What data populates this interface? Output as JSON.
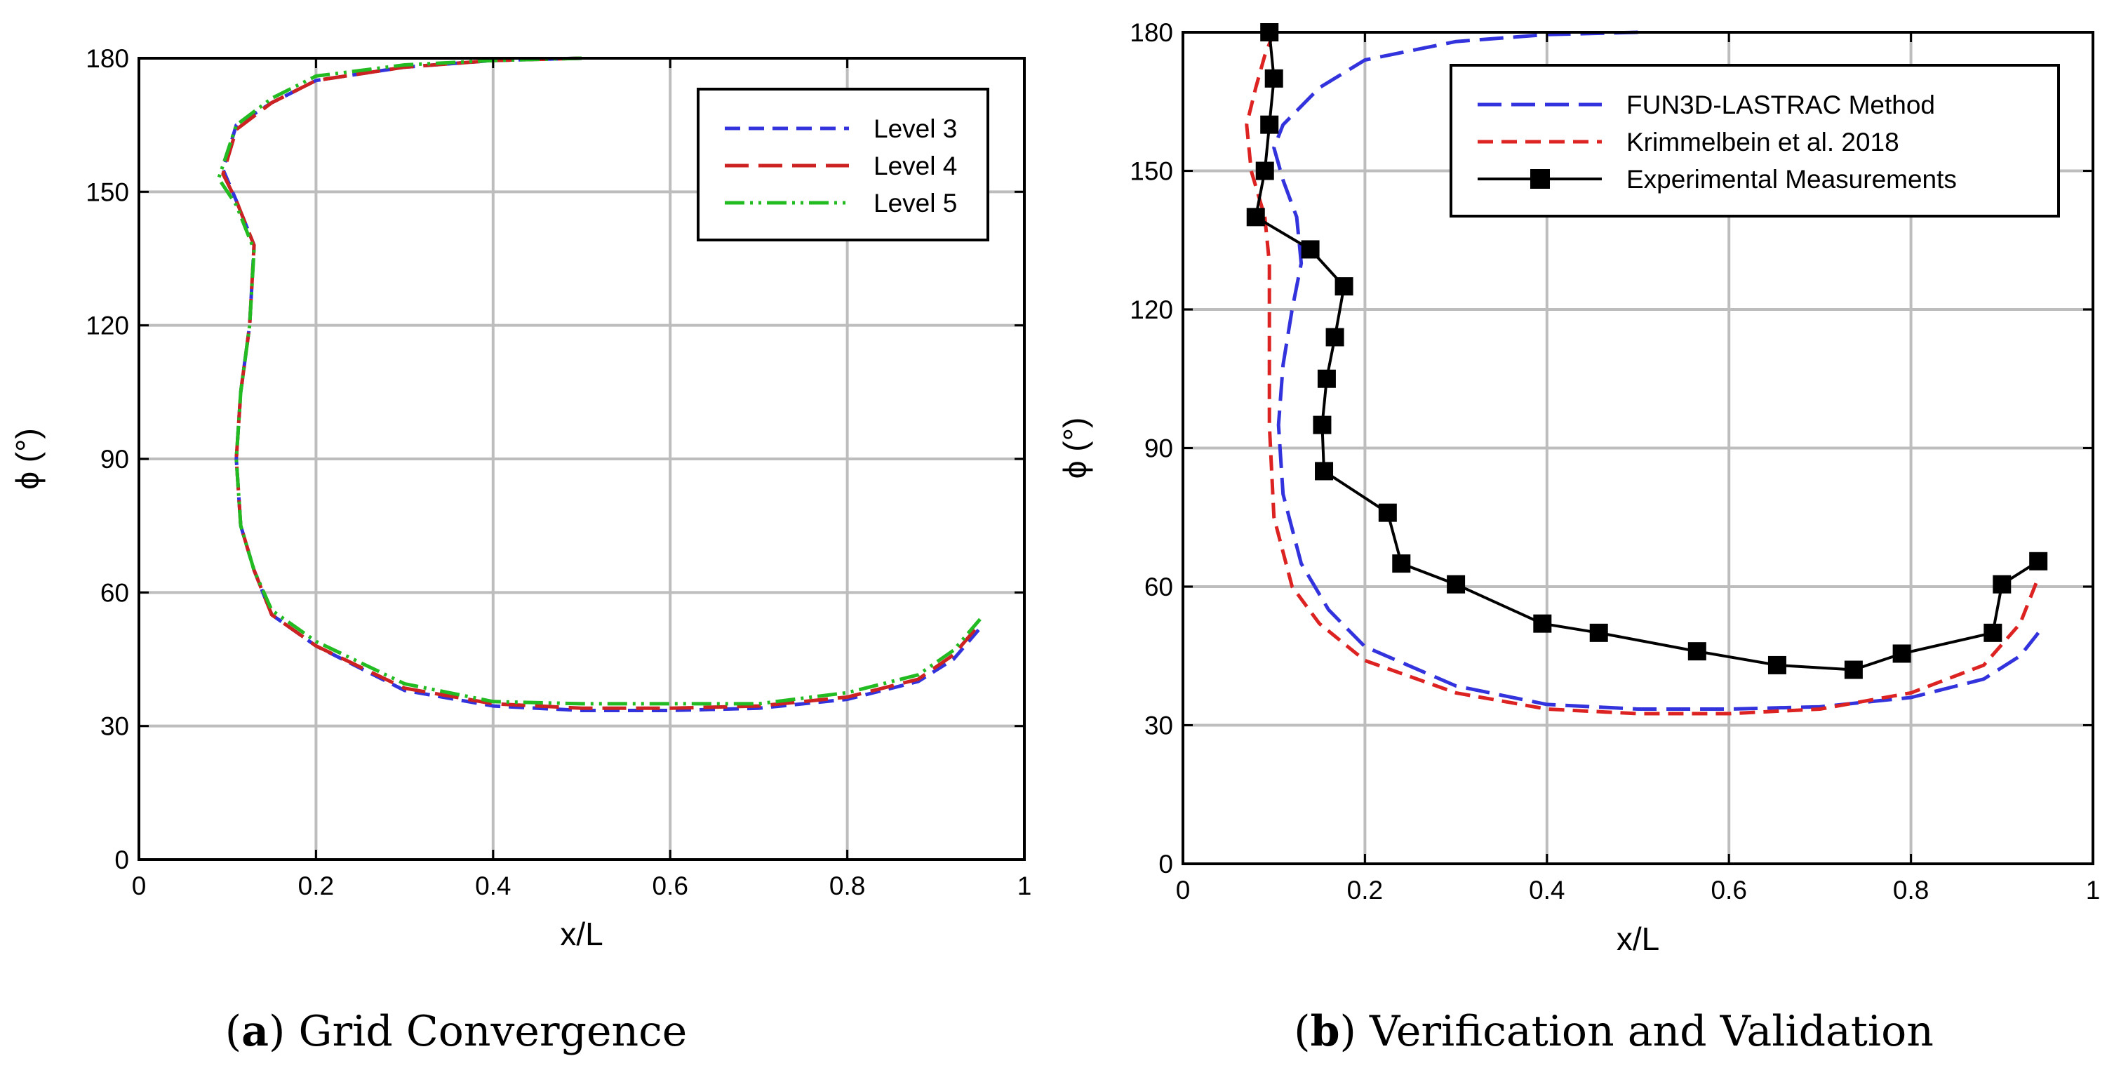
{
  "chart_data": [
    {
      "id": "a",
      "type": "line",
      "caption_tag": "a",
      "caption_text": "Grid Convergence",
      "xlabel": "x/L",
      "ylabel": "ϕ (°)",
      "xlim": [
        0,
        1
      ],
      "ylim": [
        0,
        180
      ],
      "xticks": [
        0,
        0.2,
        0.4,
        0.6,
        0.8,
        1
      ],
      "xtick_labels": [
        "0",
        "0.2",
        "0.4",
        "0.6",
        "0.8",
        "1"
      ],
      "yticks": [
        0,
        30,
        60,
        90,
        120,
        150,
        180
      ],
      "ytick_labels": [
        "0",
        "30",
        "60",
        "90",
        "120",
        "150",
        "180"
      ],
      "grid": true,
      "legend_position": "top-right",
      "series": [
        {
          "name": "Level 3",
          "color": "#3333dd",
          "style": "dash",
          "x": [
            0.5,
            0.4,
            0.3,
            0.2,
            0.15,
            0.11,
            0.095,
            0.11,
            0.13,
            0.125,
            0.115,
            0.11,
            0.115,
            0.13,
            0.15,
            0.2,
            0.3,
            0.4,
            0.5,
            0.6,
            0.7,
            0.8,
            0.88,
            0.92,
            0.95
          ],
          "y": [
            180,
            179.5,
            178,
            175,
            170,
            165,
            155,
            148,
            138,
            120,
            105,
            90,
            75,
            65,
            55,
            48,
            38,
            34.5,
            33.5,
            33.5,
            34,
            36,
            40,
            45,
            52
          ]
        },
        {
          "name": "Level 4",
          "color": "#cc2222",
          "style": "longdash",
          "x": [
            0.5,
            0.4,
            0.3,
            0.2,
            0.15,
            0.11,
            0.095,
            0.11,
            0.13,
            0.125,
            0.115,
            0.11,
            0.115,
            0.13,
            0.15,
            0.2,
            0.3,
            0.4,
            0.5,
            0.6,
            0.7,
            0.8,
            0.88,
            0.92,
            0.95
          ],
          "y": [
            180,
            179.5,
            178,
            175,
            170,
            164,
            154,
            148,
            138,
            120,
            105,
            90,
            75,
            65,
            55,
            48,
            38.5,
            35,
            34,
            34,
            34.5,
            36.5,
            40.5,
            46,
            53
          ]
        },
        {
          "name": "Level 5",
          "color": "#22bb22",
          "style": "dashdot",
          "x": [
            0.5,
            0.4,
            0.3,
            0.2,
            0.15,
            0.11,
            0.09,
            0.11,
            0.13,
            0.125,
            0.115,
            0.11,
            0.115,
            0.13,
            0.15,
            0.2,
            0.3,
            0.4,
            0.5,
            0.6,
            0.7,
            0.8,
            0.88,
            0.92,
            0.95
          ],
          "y": [
            180,
            179.5,
            178.5,
            176,
            171,
            165,
            153,
            147,
            137,
            120,
            105,
            90,
            75,
            65,
            56,
            49,
            39.5,
            35.5,
            35,
            35,
            35,
            37.5,
            41.5,
            47,
            54
          ]
        }
      ]
    },
    {
      "id": "b",
      "type": "line",
      "caption_tag": "b",
      "caption_text": "Verification and Validation",
      "xlabel": "x/L",
      "ylabel": "ϕ (°)",
      "xlim": [
        0,
        1
      ],
      "ylim": [
        0,
        180
      ],
      "xticks": [
        0,
        0.2,
        0.4,
        0.6,
        0.8,
        1
      ],
      "xtick_labels": [
        "0",
        "0.2",
        "0.4",
        "0.6",
        "0.8",
        "1"
      ],
      "yticks": [
        0,
        30,
        60,
        90,
        120,
        150,
        180
      ],
      "ytick_labels": [
        "0",
        "30",
        "60",
        "90",
        "120",
        "150",
        "180"
      ],
      "grid": true,
      "legend_position": "top-right",
      "series": [
        {
          "name": "FUN3D-LASTRAC Method",
          "color": "#3333dd",
          "style": "longdash",
          "x": [
            0.5,
            0.4,
            0.3,
            0.2,
            0.15,
            0.11,
            0.1,
            0.11,
            0.125,
            0.13,
            0.12,
            0.11,
            0.105,
            0.11,
            0.13,
            0.16,
            0.2,
            0.3,
            0.4,
            0.5,
            0.6,
            0.7,
            0.8,
            0.88,
            0.92,
            0.94
          ],
          "y": [
            180,
            179.5,
            178,
            174,
            168,
            160,
            155,
            148,
            140,
            130,
            120,
            108,
            95,
            80,
            65,
            55,
            47,
            38.5,
            34.5,
            33.5,
            33.5,
            34,
            36,
            40,
            45,
            50
          ]
        },
        {
          "name": "Krimmelbein et al. 2018",
          "color": "#dd2222",
          "style": "dash",
          "x": [
            0.1,
            0.09,
            0.08,
            0.07,
            0.075,
            0.09,
            0.095,
            0.095,
            0.095,
            0.1,
            0.12,
            0.15,
            0.2,
            0.3,
            0.4,
            0.5,
            0.6,
            0.7,
            0.8,
            0.88,
            0.92,
            0.94
          ],
          "y": [
            180,
            175,
            168,
            160,
            150,
            140,
            130,
            115,
            95,
            75,
            60,
            52,
            44,
            37,
            33.5,
            32.5,
            32.5,
            33.5,
            37,
            43,
            52,
            62
          ]
        },
        {
          "name": "Experimental Measurements",
          "color": "#000000",
          "style": "solid",
          "marker": "square",
          "x": [
            0.095,
            0.1,
            0.095,
            0.09,
            0.08,
            0.14,
            0.177,
            0.167,
            0.158,
            0.153,
            0.155,
            0.225,
            0.24,
            0.3,
            0.395,
            0.457,
            0.565,
            0.653,
            0.737,
            0.79,
            0.89,
            0.9,
            0.94
          ],
          "y": [
            180,
            170,
            160,
            150,
            140,
            133,
            125,
            114,
            105,
            95,
            85,
            76,
            65,
            60.5,
            52,
            50,
            46,
            43,
            42,
            45.5,
            50,
            60.5,
            65.5
          ]
        }
      ]
    }
  ]
}
